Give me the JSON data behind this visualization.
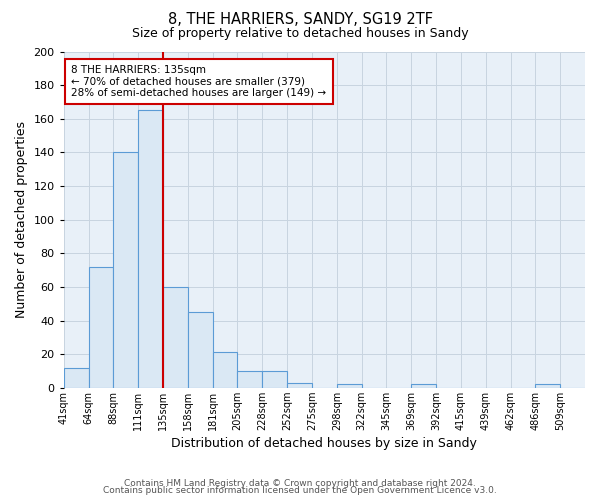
{
  "title": "8, THE HARRIERS, SANDY, SG19 2TF",
  "subtitle": "Size of property relative to detached houses in Sandy",
  "xlabel": "Distribution of detached houses by size in Sandy",
  "ylabel": "Number of detached properties",
  "bin_labels": [
    "41sqm",
    "64sqm",
    "88sqm",
    "111sqm",
    "135sqm",
    "158sqm",
    "181sqm",
    "205sqm",
    "228sqm",
    "252sqm",
    "275sqm",
    "298sqm",
    "322sqm",
    "345sqm",
    "369sqm",
    "392sqm",
    "415sqm",
    "439sqm",
    "462sqm",
    "486sqm",
    "509sqm"
  ],
  "bar_heights": [
    12,
    72,
    140,
    165,
    60,
    45,
    21,
    10,
    10,
    3,
    0,
    2,
    0,
    0,
    2,
    0,
    0,
    0,
    0,
    2,
    0
  ],
  "bar_color": "#dae8f4",
  "bar_edge_color": "#5b9bd5",
  "vline_x_index": 4,
  "vline_color": "#cc0000",
  "annotation_text": "8 THE HARRIERS: 135sqm\n← 70% of detached houses are smaller (379)\n28% of semi-detached houses are larger (149) →",
  "annotation_box_color": "#ffffff",
  "annotation_box_edge": "#cc0000",
  "ylim": [
    0,
    200
  ],
  "yticks": [
    0,
    20,
    40,
    60,
    80,
    100,
    120,
    140,
    160,
    180,
    200
  ],
  "footer1": "Contains HM Land Registry data © Crown copyright and database right 2024.",
  "footer2": "Contains public sector information licensed under the Open Government Licence v3.0.",
  "background_color": "#ffffff",
  "grid_color": "#c8d4e0"
}
